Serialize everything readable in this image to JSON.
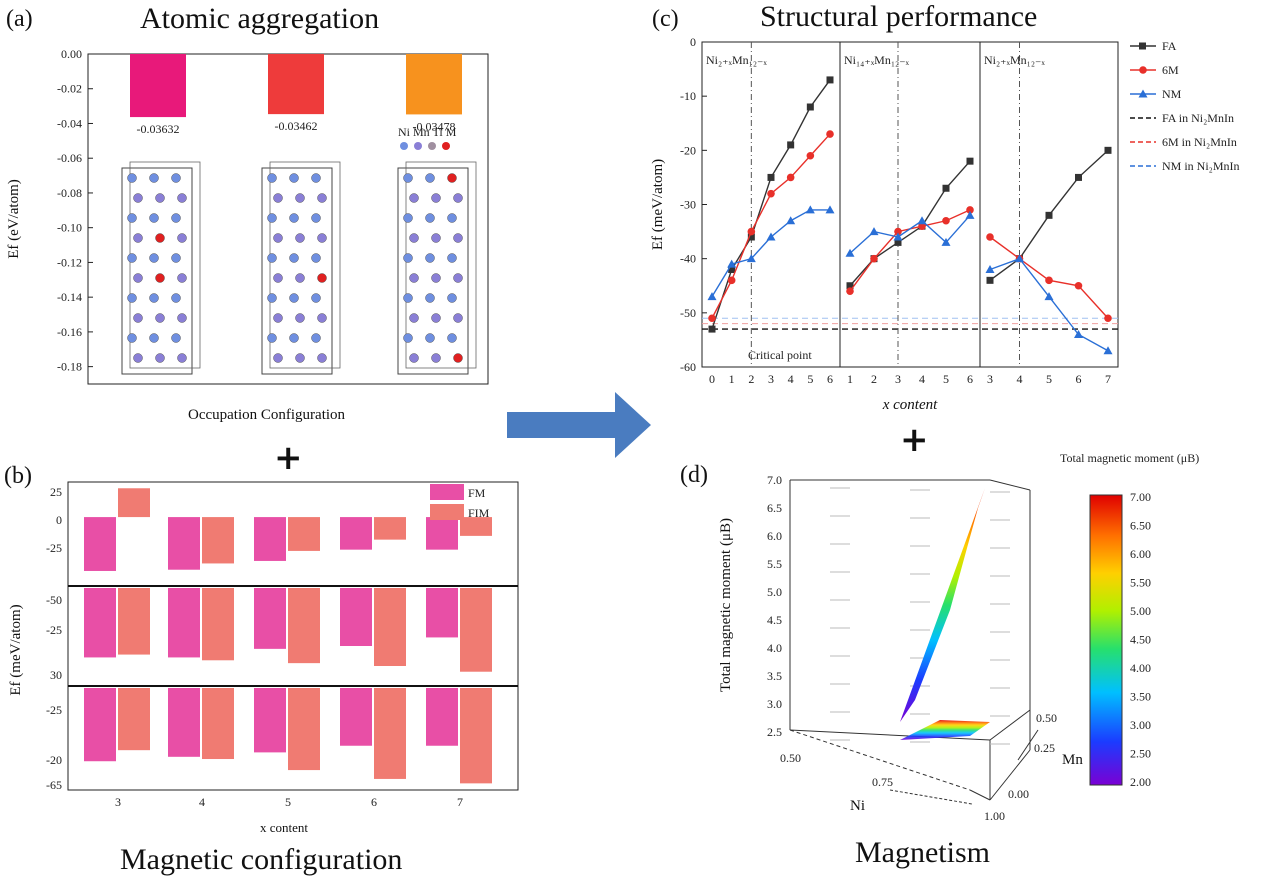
{
  "panel_a": {
    "tag": "(a)",
    "title": "Atomic aggregation",
    "xlabel": "Occupation Configuration",
    "ylabel": "Ef (eV/atom)",
    "crystal_legend": "Ni Mn Ti M",
    "colors": [
      "#e8197a",
      "#ee3b3b",
      "#f7921e"
    ]
  },
  "panel_b": {
    "tag": "(b)",
    "title": "Magnetic configuration",
    "xlabel": "x content",
    "ylabel": "Ef (meV/atom)",
    "legend": [
      "FM",
      "FIM"
    ],
    "colors": [
      "#e84fa6",
      "#f07b72"
    ]
  },
  "panel_c": {
    "tag": "(c)",
    "title": "Structural performance",
    "xlabel": "x content",
    "ylabel": "Ef (meV/atom)",
    "sub_titles": [
      "Ni₂₊ₓMn₁₂₋ₓ",
      "Ni₁₄₊ₓMn₁₂₋ₓ",
      "Ni₂₊ₓMn₁₂₋ₓ"
    ],
    "critical_label": "Critical point",
    "legend": [
      "FA",
      "6M",
      "NM",
      "FA in Ni₂MnIn",
      "6M in Ni₂MnIn",
      "NM in Ni₂MnIn"
    ],
    "colors": [
      "#333333",
      "#e8302a",
      "#2a6fd6"
    ]
  },
  "panel_d": {
    "tag": "(d)",
    "title": "Magnetism",
    "zlabel": "Total magnetic moment (μB)",
    "axis_ni": "Ni",
    "axis_mn": "Mn",
    "colorbar_title": "Total magnetic moment (μB)",
    "z_ticks": [
      "7.0",
      "6.5",
      "6.0",
      "5.5",
      "5.0",
      "4.5",
      "4.0",
      "3.5",
      "3.0",
      "2.5"
    ],
    "ni_ticks": [
      "0.50",
      "0.75",
      "1.00"
    ],
    "mn_ticks": [
      "0.50",
      "0.25",
      "0.00"
    ],
    "cb_ticks": [
      "7.00",
      "6.50",
      "6.00",
      "5.50",
      "5.00",
      "4.50",
      "4.00",
      "3.50",
      "3.00",
      "2.50",
      "2.00"
    ]
  },
  "plus": "+",
  "chart_data": [
    {
      "type": "bar",
      "title": "Atomic aggregation",
      "xlabel": "Occupation Configuration",
      "ylabel": "Ef (eV/atom)",
      "ylim": [
        -0.19,
        0.0
      ],
      "yticks": [
        0.0,
        -0.02,
        -0.04,
        -0.06,
        -0.08,
        -0.1,
        -0.12,
        -0.14,
        -0.16,
        -0.18
      ],
      "categories": [
        "",
        "",
        ""
      ],
      "values": [
        -0.03632,
        -0.03462,
        -0.03478
      ],
      "value_labels": [
        "-0.03632",
        "-0.03462",
        "-0.03478"
      ]
    },
    {
      "type": "bar",
      "title": "Magnetic configuration",
      "xlabel": "x content",
      "ylabel": "Ef (meV/atom)",
      "categories": [
        "3",
        "4",
        "5",
        "6",
        "7"
      ],
      "legend_position": "top-right",
      "panels": [
        {
          "yticks": [
            25,
            0,
            -25
          ],
          "ylim": [
            -55,
            28
          ],
          "series": [
            {
              "name": "FM",
              "values": [
                -43,
                -42,
                -35,
                -26,
                -26
              ]
            },
            {
              "name": "FIM",
              "values": [
                23,
                -37,
                -27,
                -18,
                -15
              ]
            }
          ]
        },
        {
          "yticks": [
            -50,
            -25,
            30
          ],
          "ylim": [
            -50,
            -15
          ],
          "series": [
            {
              "name": "FM",
              "values": [
                -40,
                -40,
                -37,
                -36,
                -33
              ]
            },
            {
              "name": "FIM",
              "values": [
                -39,
                -41,
                -42,
                -43,
                -45
              ]
            }
          ]
        },
        {
          "yticks": [
            -25,
            -20,
            -65
          ],
          "ylim": [
            -65,
            -18
          ],
          "series": [
            {
              "name": "FM",
              "values": [
                -52,
                -50,
                -48,
                -45,
                -45
              ]
            },
            {
              "name": "FIM",
              "values": [
                -47,
                -51,
                -56,
                -60,
                -62
              ]
            }
          ]
        }
      ]
    },
    {
      "type": "line",
      "title": "Structural performance",
      "xlabel": "x content",
      "ylabel": "Ef (meV/atom)",
      "ylim": [
        -60,
        0
      ],
      "yticks": [
        0,
        -10,
        -20,
        -30,
        -40,
        -50,
        -60
      ],
      "ytick_labels": [
        "0",
        "-10",
        "-20",
        "-30",
        "-40",
        "-50",
        "-60"
      ],
      "reference_lines": [
        {
          "name": "FA in Ni₂MnIn",
          "y": -53
        },
        {
          "name": "6M in Ni₂MnIn",
          "y": -52
        },
        {
          "name": "NM in Ni₂MnIn",
          "y": -51
        }
      ],
      "panels": [
        {
          "x": [
            0,
            1,
            2,
            3,
            4,
            5,
            6
          ],
          "xticks": [
            "0",
            "1",
            "2",
            "3",
            "4",
            "5",
            "6"
          ],
          "critical_x": 2,
          "series": [
            {
              "name": "FA",
              "values": [
                -53,
                -42,
                -36,
                -25,
                -19,
                -12,
                -7
              ]
            },
            {
              "name": "6M",
              "values": [
                -51,
                -44,
                -35,
                -28,
                -25,
                -21,
                -17
              ]
            },
            {
              "name": "NM",
              "values": [
                -47,
                -41,
                -40,
                -36,
                -33,
                -31,
                -31
              ]
            }
          ]
        },
        {
          "x": [
            1,
            2,
            3,
            4,
            5,
            6
          ],
          "xticks": [
            "1",
            "2",
            "3",
            "4",
            "5",
            "6"
          ],
          "critical_x": 3,
          "series": [
            {
              "name": "FA",
              "values": [
                -45,
                -40,
                -37,
                -34,
                -27,
                -22
              ]
            },
            {
              "name": "6M",
              "values": [
                -46,
                -40,
                -35,
                -34,
                -33,
                -31
              ]
            },
            {
              "name": "NM",
              "values": [
                -39,
                -35,
                -36,
                -33,
                -37,
                -32
              ]
            }
          ]
        },
        {
          "x": [
            3,
            4,
            5,
            6,
            7
          ],
          "xticks": [
            "3",
            "4",
            "5",
            "6",
            "7"
          ],
          "critical_x": 4,
          "series": [
            {
              "name": "FA",
              "values": [
                -44,
                -40,
                -32,
                -25,
                -20
              ]
            },
            {
              "name": "6M",
              "values": [
                -36,
                -40,
                -44,
                -45,
                -51
              ]
            },
            {
              "name": "NM",
              "values": [
                -42,
                -40,
                -47,
                -54,
                -57
              ]
            }
          ]
        }
      ]
    }
  ]
}
